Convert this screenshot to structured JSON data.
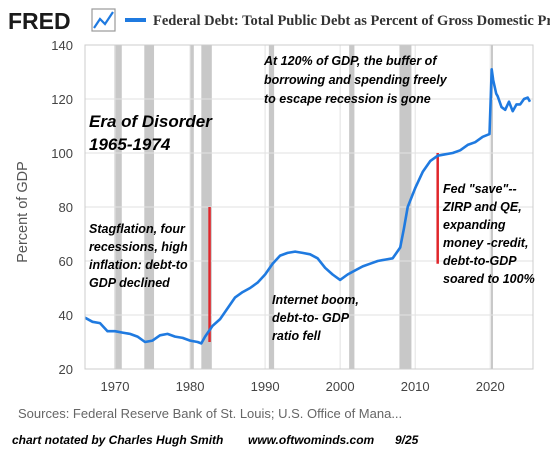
{
  "header": {
    "logo_text": "FRED",
    "logo_icon": "line-chart-icon",
    "title": "Federal Debt: Total Public Debt as Percent of Gross Domestic Product",
    "accent": "#1f7ae0"
  },
  "source": "Sources: Federal Reserve Bank of St. Louis; U.S. Office of Mana...",
  "credit": {
    "author": "chart notated by Charles Hugh Smith",
    "site": "www.oftwominds.com",
    "date": "9/25"
  },
  "annotations": {
    "era_line1": "Era of Disorder",
    "era_line2": "1965-1974",
    "top_line1": "At 120% of GDP, the buffer of",
    "top_line2": "borrowing and spending freely",
    "top_line3": "to escape recession is gone",
    "stag_line1": "Stagflation, four",
    "stag_line2": "recessions, high",
    "stag_line3": "inflation: debt-to",
    "stag_line4": "GDP declined",
    "net_line1": "Internet boom,",
    "net_line2": "debt-to- GDP",
    "net_line3": "ratio fell",
    "fed_line1": "Fed \"save\"--",
    "fed_line2": "ZIRP and QE,",
    "fed_line3": "expanding",
    "fed_line4": "money -credit,",
    "fed_line5": "debt-to-GDP",
    "fed_line6": "soared to 100%"
  },
  "chart_data": {
    "type": "line",
    "ylabel": "Percent of GDP",
    "xlim": [
      1966,
      2025.7
    ],
    "ylim": [
      20,
      140
    ],
    "yticks": [
      20,
      40,
      60,
      80,
      100,
      120,
      140
    ],
    "xticks": [
      1970,
      1980,
      1990,
      2000,
      2010,
      2020
    ],
    "grid": true,
    "line_color": "#1f7ae0",
    "recession_color": "#c8c8c8",
    "marker_color": "#e0262b",
    "recessions": [
      [
        1969.9,
        1970.9
      ],
      [
        1973.9,
        1975.2
      ],
      [
        1980.0,
        1980.5
      ],
      [
        1981.5,
        1982.9
      ],
      [
        1990.5,
        1991.2
      ],
      [
        2001.2,
        2001.9
      ],
      [
        2007.9,
        2009.5
      ],
      [
        2020.1,
        2020.3
      ]
    ],
    "markers": [
      {
        "x": 1982.6,
        "y": [
          30,
          80
        ]
      },
      {
        "x": 2013.0,
        "y": [
          59,
          100
        ]
      }
    ],
    "series": [
      {
        "x": [
          1966.0,
          1967.0,
          1968.0,
          1969.0,
          1970.0,
          1971.0,
          1972.0,
          1973.0,
          1974.0,
          1975.0,
          1976.0,
          1977.0,
          1978.0,
          1979.0,
          1980.0,
          1981.0,
          1981.5,
          1982.0,
          1983.0,
          1984.0,
          1985.0,
          1986.0,
          1987.0,
          1988.0,
          1989.0,
          1990.0,
          1991.0,
          1992.0,
          1993.0,
          1994.0,
          1995.0,
          1996.0,
          1997.0,
          1998.0,
          1999.0,
          2000.0,
          2001.0,
          2002.0,
          2003.0,
          2004.0,
          2005.0,
          2006.0,
          2007.0,
          2008.0,
          2008.5,
          2009.0,
          2010.0,
          2011.0,
          2012.0,
          2013.0,
          2014.0,
          2015.0,
          2016.0,
          2017.0,
          2018.0,
          2019.0,
          2019.9,
          2020.2,
          2020.4,
          2020.8,
          2021.0,
          2021.5,
          2022.0,
          2022.5,
          2023.0,
          2023.5,
          2024.0,
          2024.5,
          2025.0,
          2025.3
        ],
        "values": [
          39,
          37.5,
          37,
          34,
          34,
          33.5,
          33,
          32,
          30,
          30.5,
          32.5,
          33,
          32,
          31.5,
          30.5,
          30,
          29.5,
          32,
          36,
          38.5,
          42.5,
          46.5,
          48.5,
          50,
          52,
          55,
          59,
          62,
          63,
          63.5,
          63,
          62.5,
          61,
          57.5,
          55,
          53,
          55,
          56.5,
          58,
          59,
          60,
          60.5,
          61,
          65,
          72,
          80,
          87,
          93,
          97,
          99,
          99.5,
          100,
          101,
          103,
          104,
          106,
          107,
          131,
          127,
          122,
          121,
          117,
          116,
          119,
          115.5,
          118,
          118,
          120,
          120.5,
          119
        ]
      }
    ]
  }
}
